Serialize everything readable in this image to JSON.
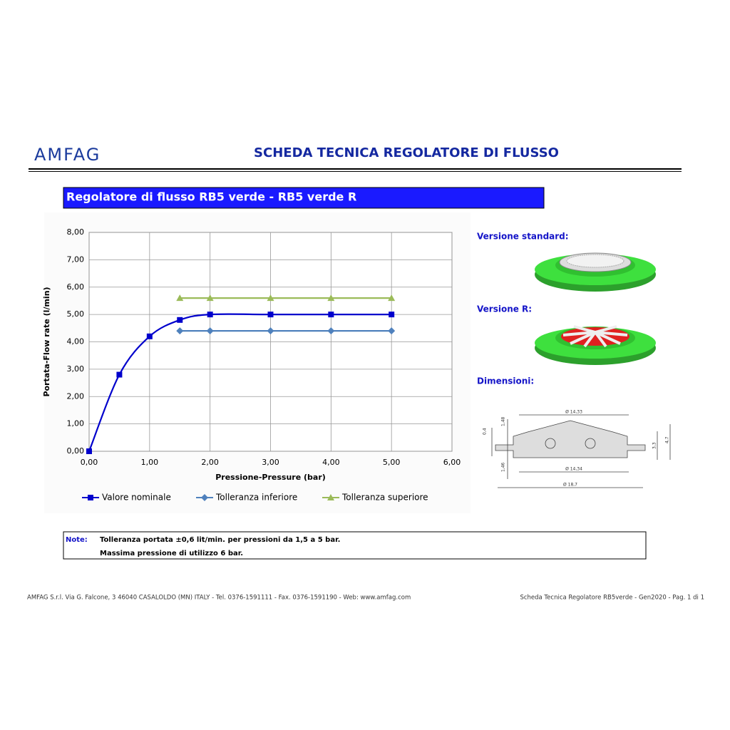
{
  "header": {
    "logo": "AMFAG",
    "title": "SCHEDA TECNICA REGOLATORE DI FLUSSO"
  },
  "section_title": "Regolatore di flusso RB5 verde - RB5 verde R",
  "chart_data": {
    "type": "line",
    "smooth": true,
    "grid": true,
    "x_label": "Pressione-Pressure (bar)",
    "y_label": "Portata-Flow rate (l/min)",
    "xlim": [
      0,
      6
    ],
    "ylim": [
      0,
      8
    ],
    "xticks": [
      {
        "value": 0,
        "label": "0,00"
      },
      {
        "value": 1,
        "label": "1,00"
      },
      {
        "value": 2,
        "label": "2,00"
      },
      {
        "value": 3,
        "label": "3,00"
      },
      {
        "value": 4,
        "label": "4,00"
      },
      {
        "value": 5,
        "label": "5,00"
      },
      {
        "value": 6,
        "label": "6,00"
      }
    ],
    "yticks": [
      {
        "value": 0,
        "label": "0,00"
      },
      {
        "value": 1,
        "label": "1,00"
      },
      {
        "value": 2,
        "label": "2,00"
      },
      {
        "value": 3,
        "label": "3,00"
      },
      {
        "value": 4,
        "label": "4,00"
      },
      {
        "value": 5,
        "label": "5,00"
      },
      {
        "value": 6,
        "label": "6,00"
      },
      {
        "value": 7,
        "label": "7,00"
      },
      {
        "value": 8,
        "label": "8,00"
      }
    ],
    "series": [
      {
        "name": "Valore nominale",
        "color": "#0000cc",
        "marker": "square",
        "x": [
          0,
          0.5,
          1,
          1.5,
          2,
          3,
          4,
          5
        ],
        "values": [
          0,
          2.8,
          4.2,
          4.8,
          5.0,
          5.0,
          5.0,
          5.0
        ]
      },
      {
        "name": "Tolleranza inferiore",
        "color": "#4f81bd",
        "marker": "diamond",
        "x": [
          1.5,
          2,
          3,
          4,
          5
        ],
        "values": [
          4.4,
          4.4,
          4.4,
          4.4,
          4.4
        ]
      },
      {
        "name": "Tolleranza superiore",
        "color": "#9bbb59",
        "marker": "triangle",
        "x": [
          1.5,
          2,
          3,
          4,
          5
        ],
        "values": [
          5.6,
          5.6,
          5.6,
          5.6,
          5.6
        ]
      }
    ]
  },
  "versions": {
    "standard": "Versione standard:",
    "r": "Versione R:",
    "dimensions": "Dimensioni:"
  },
  "dimensions": [
    "Ø 14,33",
    "Ø 14,34",
    "Ø 18,7",
    "1,48",
    "0,4",
    "1,46",
    "3,3",
    "4,7"
  ],
  "note": {
    "label": "Note:",
    "lines": [
      "Tolleranza portata ±0,6 lit/min. per pressioni da 1,5 a 5 bar.",
      "Massima pressione di utilizzo 6 bar."
    ]
  },
  "footer": {
    "left": "AMFAG S.r.l. Via G. Falcone, 3 46040 CASALOLDO (MN) ITALY - Tel. 0376-1591111 - Fax. 0376-1591190 - Web: www.amfag.com",
    "right": "Scheda Tecnica Regolatore RB5verde - Gen2020 - Pag. 1 di 1"
  }
}
